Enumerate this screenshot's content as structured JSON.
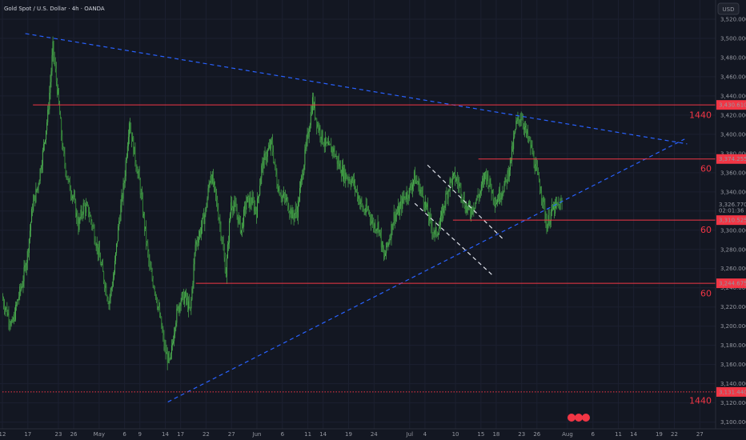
{
  "chart_data": {
    "type": "line",
    "title": "Gold Spot / U.S. Dollar · 4h · OANDA",
    "currency": "USD",
    "y_ticks": [
      3100,
      3120,
      3140,
      3160,
      3180,
      3200,
      3220,
      3240,
      3260,
      3280,
      3300,
      3320,
      3340,
      3360,
      3380,
      3400,
      3420,
      3440,
      3460,
      3480,
      3500,
      3520
    ],
    "ylim": [
      3093,
      3540
    ],
    "x_ticks": [
      {
        "label": "12",
        "d": 0
      },
      {
        "label": "17",
        "d": 5
      },
      {
        "label": "23",
        "d": 11
      },
      {
        "label": "26",
        "d": 14
      },
      {
        "label": "May",
        "d": 19
      },
      {
        "label": "6",
        "d": 24
      },
      {
        "label": "9",
        "d": 27
      },
      {
        "label": "14",
        "d": 32
      },
      {
        "label": "17",
        "d": 35
      },
      {
        "label": "22",
        "d": 40
      },
      {
        "label": "27",
        "d": 45
      },
      {
        "label": "Jun",
        "d": 50
      },
      {
        "label": "6",
        "d": 55
      },
      {
        "label": "11",
        "d": 60
      },
      {
        "label": "14",
        "d": 63
      },
      {
        "label": "19",
        "d": 68
      },
      {
        "label": "24",
        "d": 73
      },
      {
        "label": "Jul",
        "d": 80
      },
      {
        "label": "4",
        "d": 83
      },
      {
        "label": "10",
        "d": 89
      },
      {
        "label": "15",
        "d": 94
      },
      {
        "label": "18",
        "d": 97
      },
      {
        "label": "23",
        "d": 102
      },
      {
        "label": "26",
        "d": 105
      },
      {
        "label": "Aug",
        "d": 111
      },
      {
        "label": "6",
        "d": 116
      },
      {
        "label": "11",
        "d": 121
      },
      {
        "label": "14",
        "d": 124
      },
      {
        "label": "19",
        "d": 129
      },
      {
        "label": "22",
        "d": 132
      },
      {
        "label": "27",
        "d": 137
      }
    ],
    "series": [
      {
        "values": [
          [
            0,
            3230
          ],
          [
            1,
            3215
          ],
          [
            2,
            3200
          ],
          [
            3,
            3225
          ],
          [
            4,
            3245
          ],
          [
            5,
            3275
          ],
          [
            6,
            3325
          ],
          [
            7,
            3345
          ],
          [
            8,
            3380
          ],
          [
            9,
            3420
          ],
          [
            10,
            3490
          ],
          [
            11,
            3440
          ],
          [
            12,
            3380
          ],
          [
            13,
            3350
          ],
          [
            14,
            3335
          ],
          [
            15,
            3305
          ],
          [
            16,
            3325
          ],
          [
            17,
            3320
          ],
          [
            18,
            3300
          ],
          [
            19,
            3275
          ],
          [
            20,
            3250
          ],
          [
            21,
            3225
          ],
          [
            22,
            3255
          ],
          [
            23,
            3310
          ],
          [
            24,
            3350
          ],
          [
            25,
            3415
          ],
          [
            26,
            3380
          ],
          [
            27,
            3350
          ],
          [
            28,
            3305
          ],
          [
            29,
            3260
          ],
          [
            30,
            3240
          ],
          [
            31,
            3210
          ],
          [
            32,
            3175
          ],
          [
            33,
            3160
          ],
          [
            34,
            3205
          ],
          [
            35,
            3228
          ],
          [
            36,
            3230
          ],
          [
            37,
            3215
          ],
          [
            38,
            3285
          ],
          [
            39,
            3300
          ],
          [
            40,
            3320
          ],
          [
            41,
            3360
          ],
          [
            42,
            3335
          ],
          [
            43,
            3300
          ],
          [
            44,
            3255
          ],
          [
            45,
            3330
          ],
          [
            46,
            3320
          ],
          [
            47,
            3300
          ],
          [
            48,
            3330
          ],
          [
            49,
            3330
          ],
          [
            50,
            3320
          ],
          [
            51,
            3365
          ],
          [
            52,
            3380
          ],
          [
            53,
            3390
          ],
          [
            54,
            3350
          ],
          [
            55,
            3335
          ],
          [
            56,
            3330
          ],
          [
            57,
            3315
          ],
          [
            58,
            3320
          ],
          [
            59,
            3360
          ],
          [
            60,
            3395
          ],
          [
            61,
            3435
          ],
          [
            62,
            3410
          ],
          [
            63,
            3395
          ],
          [
            64,
            3385
          ],
          [
            65,
            3385
          ],
          [
            66,
            3370
          ],
          [
            67,
            3360
          ],
          [
            68,
            3355
          ],
          [
            69,
            3350
          ],
          [
            70,
            3335
          ],
          [
            71,
            3320
          ],
          [
            72,
            3320
          ],
          [
            73,
            3305
          ],
          [
            74,
            3305
          ],
          [
            75,
            3270
          ],
          [
            76,
            3290
          ],
          [
            77,
            3315
          ],
          [
            78,
            3320
          ],
          [
            79,
            3335
          ],
          [
            80,
            3340
          ],
          [
            81,
            3355
          ],
          [
            82,
            3345
          ],
          [
            83,
            3330
          ],
          [
            84,
            3310
          ],
          [
            85,
            3295
          ],
          [
            86,
            3305
          ],
          [
            87,
            3330
          ],
          [
            88,
            3350
          ],
          [
            89,
            3355
          ],
          [
            90,
            3345
          ],
          [
            91,
            3325
          ],
          [
            92,
            3320
          ],
          [
            93,
            3330
          ],
          [
            94,
            3340
          ],
          [
            95,
            3360
          ],
          [
            96,
            3345
          ],
          [
            97,
            3330
          ],
          [
            98,
            3340
          ],
          [
            99,
            3350
          ],
          [
            100,
            3375
          ],
          [
            101,
            3410
          ],
          [
            102,
            3420
          ],
          [
            103,
            3400
          ],
          [
            104,
            3385
          ],
          [
            105,
            3360
          ],
          [
            106,
            3340
          ],
          [
            107,
            3305
          ],
          [
            108,
            3320
          ],
          [
            109,
            3325
          ],
          [
            110,
            3327
          ]
        ]
      }
    ],
    "levels": [
      {
        "price": 3430.61,
        "label": "3,430.610",
        "tf": "1440"
      },
      {
        "price": 3374.255,
        "label": "3,374.255",
        "tf": "60"
      },
      {
        "price": 3310.525,
        "label": "3,310.525",
        "tf": "60"
      },
      {
        "price": 3244.675,
        "label": "3,244.675",
        "tf": "60"
      },
      {
        "price": 3131.44,
        "label": "3,131.440",
        "tf": "1440"
      }
    ],
    "current": {
      "price": 3326.77,
      "label": "3,326.770",
      "countdown": "02:01:36"
    },
    "colors": {
      "background": "#131722",
      "candle": "#4caf50",
      "level": "#f23645",
      "trendline": "#2962ff",
      "axis_text": "#9598a1"
    }
  }
}
